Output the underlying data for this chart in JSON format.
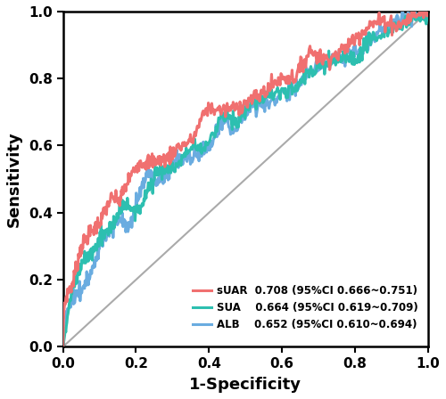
{
  "xlabel": "1-Specificity",
  "ylabel": "Sensitivity",
  "xlim": [
    0.0,
    1.0
  ],
  "ylim": [
    0.0,
    1.0
  ],
  "xticks": [
    0.0,
    0.2,
    0.4,
    0.6,
    0.8,
    1.0
  ],
  "yticks": [
    0.0,
    0.2,
    0.4,
    0.6,
    0.8,
    1.0
  ],
  "suar_color": "#F07070",
  "sua_color": "#2DBFB0",
  "alb_color": "#6AACE0",
  "diag_color": "#AAAAAA",
  "suar_auc": 0.708,
  "sua_auc": 0.664,
  "alb_auc": 0.652,
  "legend_labels": [
    "sUAR  0.708 (95%CI 0.666~0.751)",
    "SUA    0.664 (95%CI 0.619~0.709)",
    "ALB    0.652 (95%CI 0.610~0.694)"
  ],
  "line_width": 2.2,
  "background_color": "#ffffff"
}
